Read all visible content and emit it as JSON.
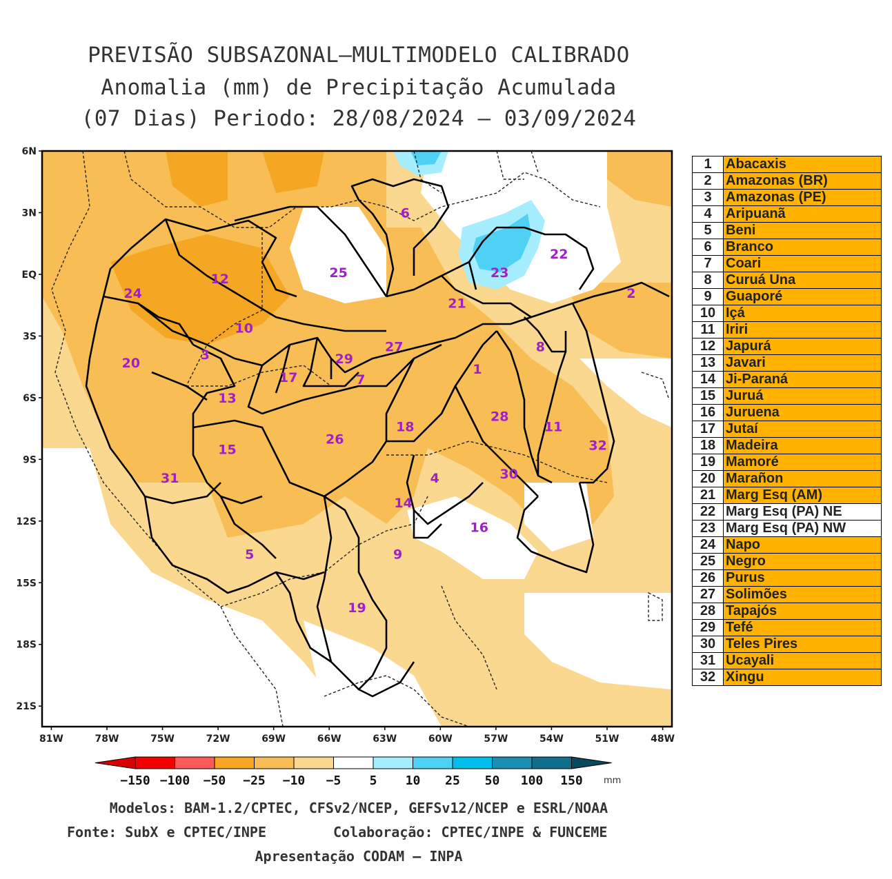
{
  "title": {
    "line1": "PREVISÃO SUBSAZONAL—MULTIMODELO CALIBRADO",
    "line2": "Anomalia (mm) de Precipitação Acumulada",
    "line3": "(07 Dias) Periodo: 28/08/2024 – 03/09/2024"
  },
  "map": {
    "lat_labels": [
      "6N",
      "3N",
      "EQ",
      "3S",
      "6S",
      "9S",
      "12S",
      "15S",
      "18S",
      "21S"
    ],
    "lon_labels": [
      "81W",
      "78W",
      "75W",
      "72W",
      "69W",
      "66W",
      "63W",
      "60W",
      "57W",
      "54W",
      "51W",
      "48W"
    ],
    "lat_range": [
      -22,
      6
    ],
    "lon_range": [
      -81.5,
      -47.5
    ],
    "basin_labels": [
      {
        "id": "1",
        "lon": -58.0,
        "lat": -4.6
      },
      {
        "id": "2",
        "lon": -49.7,
        "lat": -0.9
      },
      {
        "id": "3",
        "lon": -72.7,
        "lat": -3.9
      },
      {
        "id": "4",
        "lon": -60.3,
        "lat": -9.9
      },
      {
        "id": "5",
        "lon": -70.3,
        "lat": -13.6
      },
      {
        "id": "6",
        "lon": -61.9,
        "lat": 3.0
      },
      {
        "id": "7",
        "lon": -64.3,
        "lat": -5.1
      },
      {
        "id": "8",
        "lon": -54.6,
        "lat": -3.5
      },
      {
        "id": "9",
        "lon": -62.3,
        "lat": -13.6
      },
      {
        "id": "10",
        "lon": -70.6,
        "lat": -2.6
      },
      {
        "id": "11",
        "lon": -53.9,
        "lat": -7.4
      },
      {
        "id": "12",
        "lon": -71.9,
        "lat": -0.2
      },
      {
        "id": "13",
        "lon": -71.5,
        "lat": -6.0
      },
      {
        "id": "14",
        "lon": -62.0,
        "lat": -11.1
      },
      {
        "id": "15",
        "lon": -71.5,
        "lat": -8.5
      },
      {
        "id": "16",
        "lon": -57.9,
        "lat": -12.3
      },
      {
        "id": "17",
        "lon": -68.2,
        "lat": -5.0
      },
      {
        "id": "18",
        "lon": -61.9,
        "lat": -7.4
      },
      {
        "id": "19",
        "lon": -64.5,
        "lat": -16.2
      },
      {
        "id": "20",
        "lon": -76.7,
        "lat": -4.3
      },
      {
        "id": "21",
        "lon": -59.1,
        "lat": -1.4
      },
      {
        "id": "22",
        "lon": -53.6,
        "lat": 1.0
      },
      {
        "id": "23",
        "lon": -56.8,
        "lat": 0.1
      },
      {
        "id": "24",
        "lon": -76.6,
        "lat": -0.9
      },
      {
        "id": "25",
        "lon": -65.5,
        "lat": 0.1
      },
      {
        "id": "26",
        "lon": -65.7,
        "lat": -8.0
      },
      {
        "id": "27",
        "lon": -62.5,
        "lat": -3.5
      },
      {
        "id": "28",
        "lon": -56.8,
        "lat": -6.9
      },
      {
        "id": "29",
        "lon": -65.2,
        "lat": -4.1
      },
      {
        "id": "30",
        "lon": -56.3,
        "lat": -9.7
      },
      {
        "id": "31",
        "lon": -74.6,
        "lat": -9.9
      },
      {
        "id": "32",
        "lon": -51.5,
        "lat": -8.3
      }
    ]
  },
  "legend": [
    {
      "num": "1",
      "name": "Abacaxis",
      "highlight": true
    },
    {
      "num": "2",
      "name": "Amazonas (BR)",
      "highlight": true
    },
    {
      "num": "3",
      "name": "Amazonas (PE)",
      "highlight": true
    },
    {
      "num": "4",
      "name": "Aripuanã",
      "highlight": true
    },
    {
      "num": "5",
      "name": "Beni",
      "highlight": true
    },
    {
      "num": "6",
      "name": "Branco",
      "highlight": true
    },
    {
      "num": "7",
      "name": "Coari",
      "highlight": true
    },
    {
      "num": "8",
      "name": "Curuá Una",
      "highlight": true
    },
    {
      "num": "9",
      "name": "Guaporé",
      "highlight": true
    },
    {
      "num": "10",
      "name": "Içá",
      "highlight": true
    },
    {
      "num": "11",
      "name": "Iriri",
      "highlight": true
    },
    {
      "num": "12",
      "name": "Japurá",
      "highlight": true
    },
    {
      "num": "13",
      "name": "Javari",
      "highlight": true
    },
    {
      "num": "14",
      "name": "Ji-Paraná",
      "highlight": true
    },
    {
      "num": "15",
      "name": "Juruá",
      "highlight": true
    },
    {
      "num": "16",
      "name": "Juruena",
      "highlight": true
    },
    {
      "num": "17",
      "name": "Jutaí",
      "highlight": true
    },
    {
      "num": "18",
      "name": "Madeira",
      "highlight": true
    },
    {
      "num": "19",
      "name": "Mamoré",
      "highlight": true
    },
    {
      "num": "20",
      "name": "Marañon",
      "highlight": true
    },
    {
      "num": "21",
      "name": "Marg Esq (AM)",
      "highlight": true
    },
    {
      "num": "22",
      "name": "Marg Esq (PA) NE",
      "highlight": false
    },
    {
      "num": "23",
      "name": "Marg Esq (PA) NW",
      "highlight": false
    },
    {
      "num": "24",
      "name": "Napo",
      "highlight": true
    },
    {
      "num": "25",
      "name": "Negro",
      "highlight": true
    },
    {
      "num": "26",
      "name": "Purus",
      "highlight": true
    },
    {
      "num": "27",
      "name": "Solimões",
      "highlight": true
    },
    {
      "num": "28",
      "name": "Tapajós",
      "highlight": true
    },
    {
      "num": "29",
      "name": "Tefé",
      "highlight": true
    },
    {
      "num": "30",
      "name": "Teles Pires",
      "highlight": true
    },
    {
      "num": "31",
      "name": "Ucayali",
      "highlight": true
    },
    {
      "num": "32",
      "name": "Xingu",
      "highlight": true
    }
  ],
  "colorbar": {
    "labels": [
      "-150",
      "-100",
      "-50",
      "-25",
      "-10",
      "-5",
      "5",
      "10",
      "25",
      "50",
      "100",
      "150"
    ],
    "colors": [
      "#D80000",
      "#F20000",
      "#FF5A5A",
      "#F5A623",
      "#F8BE55",
      "#FBD88F",
      "#FFFFFF",
      "#A6EEFF",
      "#4FD0F5",
      "#00BEEB",
      "#1A8FB5",
      "#0E6E8C",
      "#074A5E"
    ],
    "unit": "mm"
  },
  "credits": {
    "models": "Modelos: BAM-1.2/CPTEC, CFSv2/NCEP, GEFSv12/NCEP e ESRL/NOAA",
    "source": "Fonte: SubX e CPTEC/INPE",
    "collab": "Colaboração: CPTEC/INPE & FUNCEME",
    "presentation": "Apresentação CODAM – INPA"
  }
}
